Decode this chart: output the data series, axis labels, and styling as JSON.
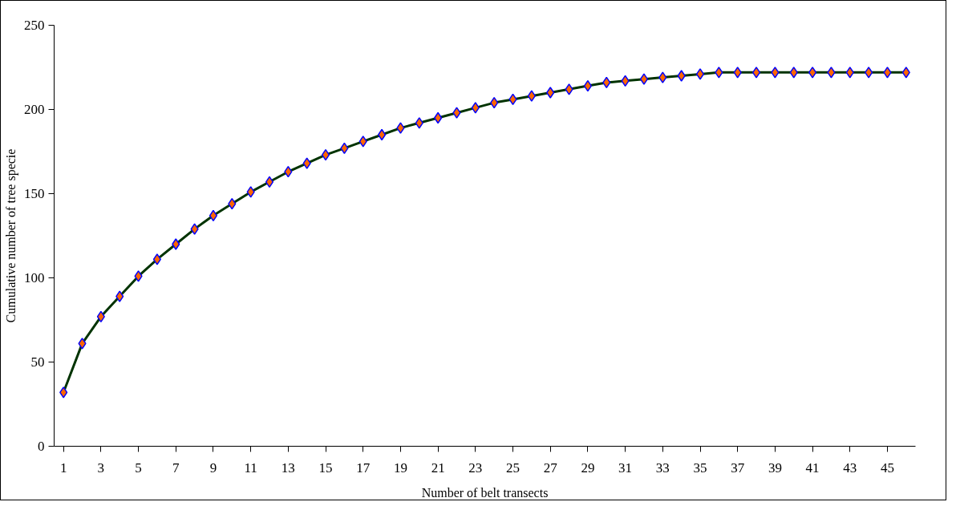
{
  "chart_data": {
    "type": "line",
    "xlabel": "Number of belt transects",
    "ylabel": "Cumulative number of tree specie",
    "x": [
      1,
      2,
      3,
      4,
      5,
      6,
      7,
      8,
      9,
      10,
      11,
      12,
      13,
      14,
      15,
      16,
      17,
      18,
      19,
      20,
      21,
      22,
      23,
      24,
      25,
      26,
      27,
      28,
      29,
      30,
      31,
      32,
      33,
      34,
      35,
      36,
      37,
      38,
      39,
      40,
      41,
      42,
      43,
      44,
      45,
      46
    ],
    "series": [
      {
        "color": "#003300",
        "values": [
          32,
          61,
          77,
          89,
          101,
          111,
          120,
          129,
          137,
          144,
          151,
          157,
          163,
          168,
          173,
          177,
          181,
          185,
          189,
          192,
          195,
          198,
          201,
          204,
          206,
          208,
          210,
          212,
          214,
          216,
          217,
          218,
          219,
          220,
          221,
          222,
          222,
          222,
          222,
          222,
          222,
          222,
          222,
          222,
          222,
          222
        ]
      }
    ],
    "marker": "diamond",
    "line_style": "solid",
    "grid": false,
    "xlim": [
      0.5,
      46.5
    ],
    "xticks": [
      1,
      3,
      5,
      7,
      9,
      11,
      13,
      15,
      17,
      19,
      21,
      23,
      25,
      27,
      29,
      31,
      33,
      35,
      37,
      39,
      41,
      43,
      45
    ],
    "ylim": [
      0,
      250
    ],
    "yticks": [
      0,
      50,
      100,
      150,
      200,
      250
    ]
  }
}
